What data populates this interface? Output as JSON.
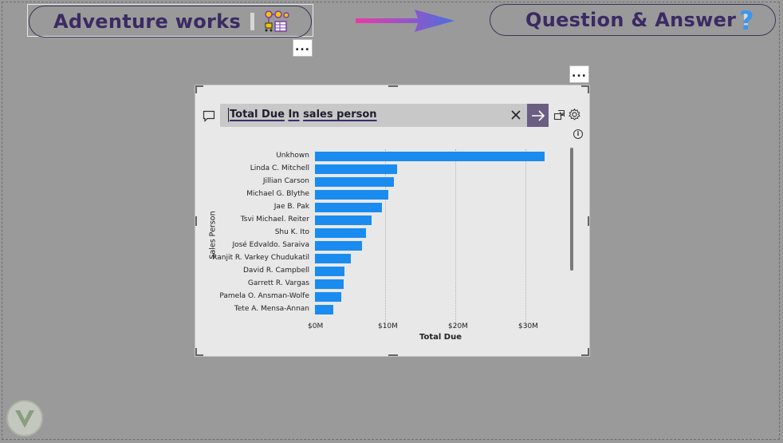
{
  "header": {
    "left_title": "Adventure works",
    "right_title": "Question & Answer",
    "question_mark": "?"
  },
  "more_options": "...",
  "qna": {
    "question_word1": "Total Due",
    "question_word2": "In",
    "question_word3": "sales person",
    "info_icon": "i"
  },
  "chart_data": {
    "type": "bar",
    "orientation": "horizontal",
    "xlabel": "Total Due",
    "ylabel": "Sales Person",
    "xlim": [
      0,
      35000000
    ],
    "xticks": [
      "$0M",
      "$10M",
      "$20M",
      "$30M"
    ],
    "grid": true,
    "categories": [
      "Unkhown",
      "Linda C. Mitchell",
      "Jillian Carson",
      "Michael G. Blythe",
      "Jae B. Pak",
      "Tsvi Michael. Reiter",
      "Shu K. Ito",
      "José Edvaldo. Saraiva",
      "Ranjit R. Varkey Chudukatil",
      "David R. Campbell",
      "Garrett R. Vargas",
      "Pamela O. Ansman-Wolfe",
      "Tete A. Mensa-Annan"
    ],
    "values": [
      32700000,
      11700000,
      11300000,
      10500000,
      9600000,
      8100000,
      7300000,
      6700000,
      5100000,
      4200000,
      4100000,
      3700000,
      2600000
    ],
    "bar_color": "#1a8cf0"
  },
  "colors": {
    "background": "#9a9a9a",
    "title": "#3b2a63",
    "submit_button": "#6b5e83"
  }
}
